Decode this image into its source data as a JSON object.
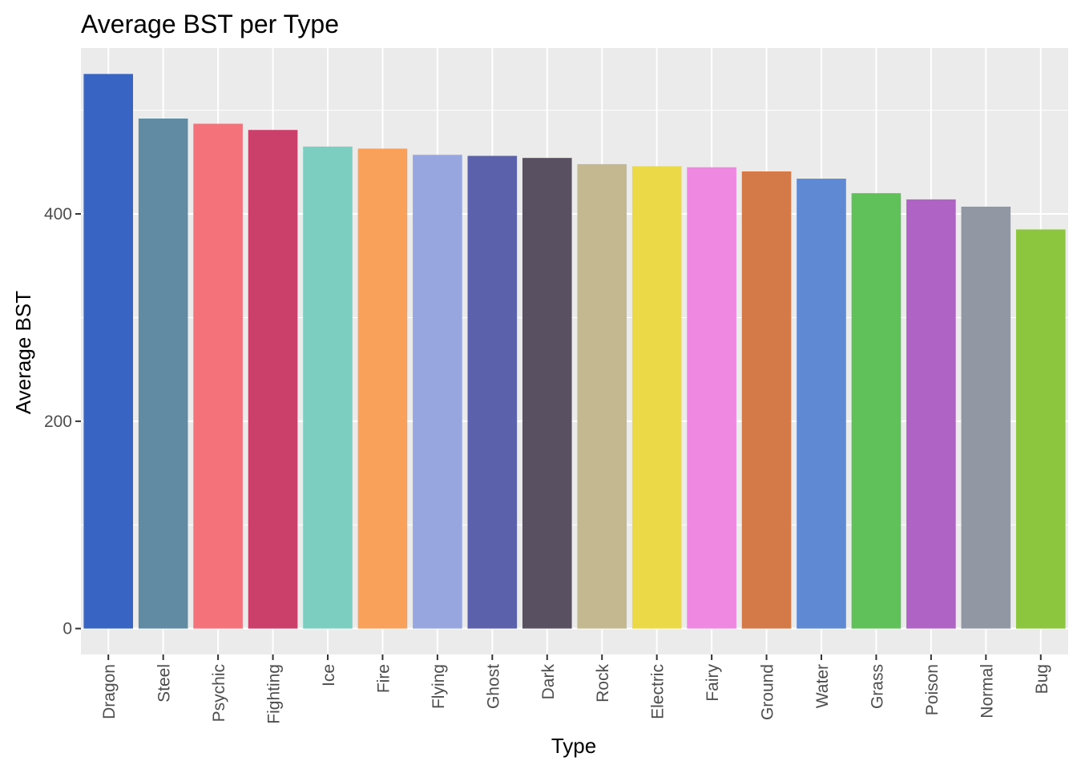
{
  "chart_data": {
    "type": "bar",
    "title": "Average BST per Type",
    "xlabel": "Type",
    "ylabel": "Average BST",
    "ylim": [
      -25,
      560
    ],
    "yticks": [
      0,
      200,
      400
    ],
    "grid": true,
    "legend": "none",
    "categories": [
      "Dragon",
      "Steel",
      "Psychic",
      "Fighting",
      "Ice",
      "Fire",
      "Flying",
      "Ghost",
      "Dark",
      "Rock",
      "Electric",
      "Fairy",
      "Ground",
      "Water",
      "Grass",
      "Poison",
      "Normal",
      "Bug"
    ],
    "values": [
      535,
      492,
      487,
      481,
      465,
      463,
      457,
      456,
      454,
      448,
      446,
      445,
      441,
      434,
      420,
      414,
      407,
      385
    ],
    "colors": [
      "#3864C3",
      "#618AA3",
      "#F4727A",
      "#CB406A",
      "#7CCEC0",
      "#F9A05A",
      "#97A6DE",
      "#5C61AB",
      "#595062",
      "#C3B88F",
      "#ECD947",
      "#EE88E1",
      "#D37A48",
      "#5F89D3",
      "#60C15B",
      "#AE63C5",
      "#9298A3",
      "#8CC63E"
    ]
  }
}
